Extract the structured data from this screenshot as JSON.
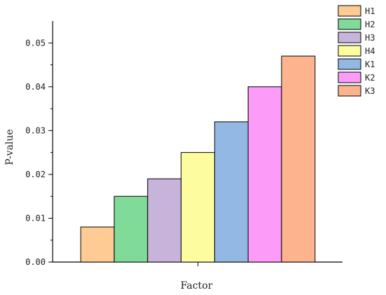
{
  "chart_data": {
    "type": "bar",
    "xlabel": "Factor",
    "ylabel": "P-value",
    "ylim": [
      0,
      0.055
    ],
    "y_ticks": [
      "0.00",
      "0.01",
      "0.02",
      "0.03",
      "0.04",
      "0.05"
    ],
    "legend_position": "top-right",
    "grid": false,
    "series": [
      {
        "name": "H1",
        "value": 0.008,
        "color": "#FDCB93"
      },
      {
        "name": "H2",
        "value": 0.015,
        "color": "#80DB98"
      },
      {
        "name": "H3",
        "value": 0.019,
        "color": "#C8B4DA"
      },
      {
        "name": "H4",
        "value": 0.025,
        "color": "#FDFD9F"
      },
      {
        "name": "K1",
        "value": 0.032,
        "color": "#93B8E3"
      },
      {
        "name": "K2",
        "value": 0.04,
        "color": "#FD9CF8"
      },
      {
        "name": "K3",
        "value": 0.047,
        "color": "#FDB38D"
      }
    ]
  }
}
